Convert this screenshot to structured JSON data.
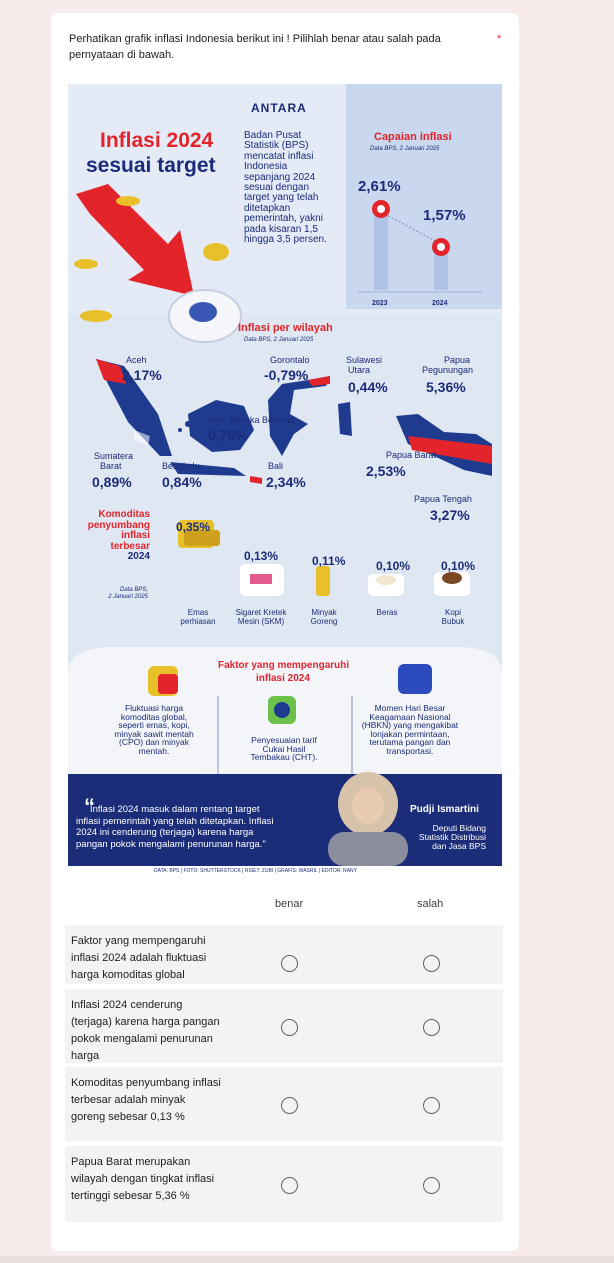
{
  "question": {
    "text": "Perhatikan grafik inflasi Indonesia berikut ini ! Pilihlah benar atau salah pada pernyataan di bawah.",
    "required_mark": "*"
  },
  "infographic": {
    "brand": "ANTARA",
    "title_line1": "Inflasi 2024",
    "title_line2": "sesuai target",
    "intro_lines": [
      "Badan Pusat",
      "Statistik (BPS)",
      "mencatat inflasi",
      "Indonesia",
      "sepanjang 2024",
      "sesuai dengan",
      "target yang telah",
      "ditetapkan",
      "pemerintah, yakni",
      "pada kisaran 1,5",
      "hingga 3,5 persen."
    ],
    "capaian_title": "Capaian inflasi",
    "capaian_source": "Data BPS, 2 Januari 2025",
    "capaian_values": [
      "2,61%",
      "1,57%"
    ],
    "capaian_years": [
      "2023",
      "2024"
    ],
    "region_title": "Inflasi per wilayah",
    "region_source": "Data BPS, 2 Januari 2025",
    "regions": {
      "aceh": {
        "name": "Aceh",
        "value": "2,17%"
      },
      "gorontalo": {
        "name": "Gorontalo",
        "value": "-0,79%"
      },
      "sulut_1": "Sulawesi",
      "sulut_2": "Utara",
      "sulut_value": "0,44%",
      "papua_peg_1": "Papua",
      "papua_peg_2": "Pegunungan",
      "papua_peg_value": "5,36%",
      "babel": {
        "name": "Kep. Bangka Belitung",
        "value": "0,75%"
      },
      "sumbar_1": "Sumatera",
      "sumbar_2": "Barat",
      "sumbar_value": "0,89%",
      "bengkulu": {
        "name": "Bengkulu",
        "value": "0,84%"
      },
      "bali": {
        "name": "Bali",
        "value": "2,34%"
      },
      "papua_barat": {
        "name": "Papua Barat",
        "value": "2,53%"
      },
      "papua_tengah": {
        "name": "Papua Tengah",
        "value": "3,27%"
      }
    },
    "komoditas_title": [
      "Komoditas",
      "penyumbang",
      "inflasi",
      "terbesar",
      "2024"
    ],
    "komoditas_source": [
      "Data BPS,",
      "2 Januari 2025"
    ],
    "komoditas": [
      {
        "value": "0,35%",
        "name1": "Emas",
        "name2": "perhiasan"
      },
      {
        "value": "0,13%",
        "name1": "Sigaret Kretek",
        "name2": "Mesin (SKM)"
      },
      {
        "value": "0,11%",
        "name1": "Minyak",
        "name2": "Goreng"
      },
      {
        "value": "0,10%",
        "name1": "Beras",
        "name2": ""
      },
      {
        "value": "0,10%",
        "name1": "Kopi",
        "name2": "Bubuk"
      }
    ],
    "faktor_title1": "Faktor yang mempengaruhi",
    "faktor_title2": "inflasi 2024",
    "faktor": [
      [
        "Fluktuasi harga",
        "komoditas global,",
        "seperti emas, kopi,",
        "minyak sawit mentah",
        "(CPO) dan minyak",
        "mentah."
      ],
      [
        "Penyesuaian tarif",
        "Cukai Hasil",
        "Tembakau (CHT)."
      ],
      [
        "Momen Hari Besar",
        "Keagamaan Nasional",
        "(HBKN) yang mengakibat",
        "lonjakan permintaan,",
        "terutama pangan dan",
        "transportasi."
      ]
    ],
    "quote_lines": [
      "Inflasi 2024 masuk dalam rentang target",
      "inflasi pemerintah yang telah ditetapkan. Inflasi",
      "2024 ini cenderung (terjaga) karena harga",
      "pangan pokok mengalami penurunan harga.\""
    ],
    "speaker_name": "Pudji Ismartini",
    "speaker_role": [
      "Deputi Bidang",
      "Statistik Distribusi",
      "dan Jasa BPS"
    ],
    "credits": "DATA: BPS  |  FOTO: SHUTTERSTOCK  |  RISET: ZUBI  |  GRAFIS: WASRIL  |  EDITOR: RANY"
  },
  "grid": {
    "columns": [
      "benar",
      "salah"
    ],
    "rows": [
      "Faktor yang mempengaruhi inflasi 2024 adalah fluktuasi harga komoditas global",
      "Inflasi 2024 cenderung (terjaga) karena harga pangan pokok mengalami penurunan harga",
      "Komoditas penyumbang inflasi terbesar adalah minyak goreng sebesar 0,13 %",
      "Papua Barat merupakan wilayah dengan tingkat inflasi tertinggi sebesar 5,36 %"
    ]
  },
  "colors": {
    "accent_red": "#e3242b",
    "navy": "#1b2c78",
    "info_bg": "#dfe7f3",
    "map_blue": "#1f3b8f",
    "gold": "#e8c12a"
  }
}
